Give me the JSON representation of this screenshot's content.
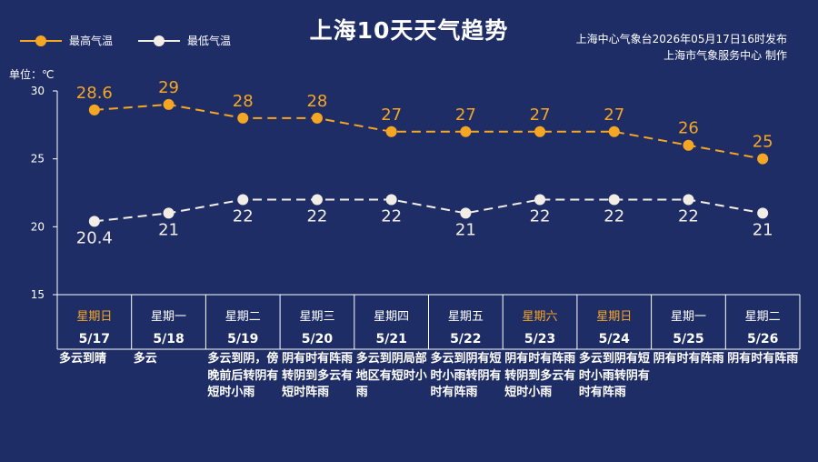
{
  "chart_data": {
    "type": "line",
    "title": "上海10天天气趋势",
    "unit_label": "单位：℃",
    "source_lines": [
      "上海中心气象台2026年05月17日16时发布",
      "上海市气象服务中心 制作"
    ],
    "ylim": [
      15,
      30
    ],
    "yticks": [
      15,
      20,
      25,
      30
    ],
    "x": [
      "5/17",
      "5/18",
      "5/19",
      "5/20",
      "5/21",
      "5/22",
      "5/23",
      "5/24",
      "5/25",
      "5/26"
    ],
    "weekdays": [
      "星期日",
      "星期一",
      "星期二",
      "星期三",
      "星期四",
      "星期五",
      "星期六",
      "星期日",
      "星期一",
      "星期二"
    ],
    "weekend": [
      true,
      false,
      false,
      false,
      false,
      false,
      true,
      true,
      false,
      false
    ],
    "descriptions": [
      "多云到晴",
      "多云",
      "多云到阴，傍晚前后转阴有短时小雨",
      "阴有时有阵雨转阴到多云有短时阵雨",
      "多云到阴局部地区有短时小雨",
      "多云到阴有短时小雨转阴有时有阵雨",
      "阴有时有阵雨转阴到多云有短时小雨",
      "多云到阴有短时小雨转阴有时有阵雨",
      "阴有时有阵雨",
      "阴有时有阵雨"
    ],
    "series": [
      {
        "name": "最高气温",
        "color": "#f5a623",
        "values": [
          28.6,
          29,
          28,
          28,
          27,
          27,
          27,
          27,
          26,
          25
        ],
        "labels": [
          "28.6",
          "29",
          "28",
          "28",
          "27",
          "27",
          "27",
          "27",
          "26",
          "25"
        ]
      },
      {
        "name": "最低气温",
        "color": "#f2eee6",
        "values": [
          20.4,
          21,
          22,
          22,
          22,
          21,
          22,
          22,
          22,
          21
        ],
        "labels": [
          "20.4",
          "21",
          "22",
          "22",
          "22",
          "21",
          "22",
          "22",
          "22",
          "21"
        ]
      }
    ],
    "colors": {
      "background": "#1f2d66",
      "weekend_text": "#f5a623",
      "axis": "#ffffff"
    },
    "legend_position": "top-left",
    "grid": false
  }
}
